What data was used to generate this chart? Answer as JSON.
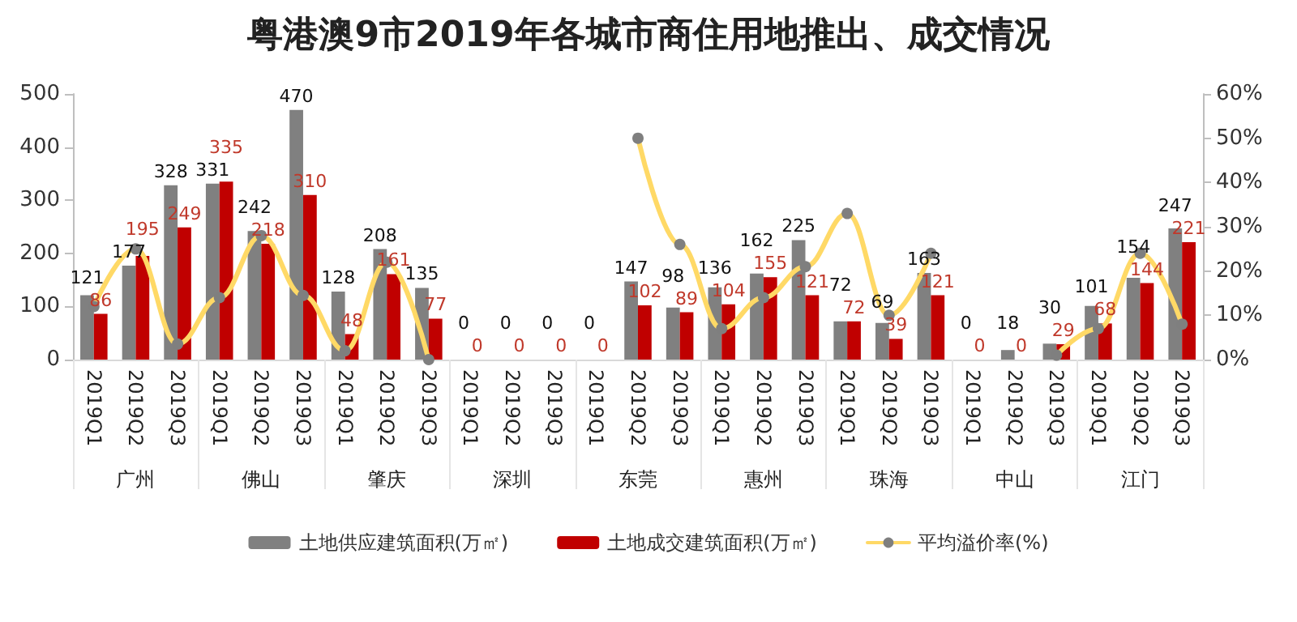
{
  "chart_data": {
    "type": "bar",
    "title": "粤港澳9市2019年各城市商住用地推出、成交情况",
    "categories": [
      "2019Q1",
      "2019Q2",
      "2019Q3",
      "2019Q1",
      "2019Q2",
      "2019Q3",
      "2019Q1",
      "2019Q2",
      "2019Q3",
      "2019Q1",
      "2019Q2",
      "2019Q3",
      "2019Q1",
      "2019Q2",
      "2019Q3",
      "2019Q1",
      "2019Q2",
      "2019Q3",
      "2019Q1",
      "2019Q2",
      "2019Q3",
      "2019Q1",
      "2019Q2",
      "2019Q3",
      "2019Q1",
      "2019Q2",
      "2019Q3"
    ],
    "annotations": [
      "广州",
      "佛山",
      "肇庆",
      "深圳",
      "东莞",
      "惠州",
      "珠海",
      "中山",
      "江门"
    ],
    "series": [
      {
        "name": "土地供应建筑面积(万㎡)",
        "color": "#808080",
        "values": [
          121,
          177,
          328,
          331,
          242,
          470,
          128,
          208,
          135,
          0,
          0,
          0,
          0,
          147,
          98,
          136,
          162,
          225,
          72,
          69,
          163,
          0,
          18,
          30,
          101,
          154,
          247
        ],
        "value_labels": [
          "121",
          "177",
          "328",
          "331",
          "242",
          "470",
          "128",
          "208",
          "135",
          "0",
          "0",
          "0",
          "0",
          "147",
          "98",
          "136",
          "162",
          "225",
          "72",
          "69",
          "163",
          "0",
          "18",
          "30",
          "101",
          "154",
          "247"
        ]
      },
      {
        "name": "土地成交建筑面积(万㎡)",
        "color": "#c00000",
        "values": [
          86,
          195,
          249,
          335,
          218,
          310,
          48,
          161,
          77,
          0,
          0,
          0,
          0,
          102,
          89,
          104,
          155,
          121,
          72,
          39,
          121,
          0,
          0,
          29,
          68,
          144,
          221
        ],
        "value_labels": [
          "86",
          "195",
          "249",
          "335",
          "218",
          "310",
          "48",
          "161",
          "77",
          "0",
          "0",
          "0",
          "0",
          "102",
          "89",
          "104",
          "155",
          "121",
          "72",
          "39",
          "121",
          "0",
          "0",
          "29",
          "68",
          "144",
          "221"
        ]
      },
      {
        "name": "平均溢价率(%)",
        "type": "line",
        "axis": "y2",
        "color": "#ffd966",
        "marker": "circle",
        "values": [
          12,
          25,
          3.5,
          14,
          28,
          14.5,
          2,
          22,
          0,
          null,
          null,
          null,
          null,
          50,
          26,
          7,
          14,
          21,
          33,
          10,
          24,
          null,
          null,
          1,
          7,
          24,
          8
        ]
      }
    ],
    "ylim": [
      0,
      500
    ],
    "yticks": [
      0,
      100,
      200,
      300,
      400,
      500
    ],
    "y2lim": [
      0,
      60
    ],
    "y2ticks": [
      {
        "value": 0,
        "label": "0%"
      },
      {
        "value": 10,
        "label": "10%"
      },
      {
        "value": 20,
        "label": "20%"
      },
      {
        "value": 30,
        "label": "30%"
      },
      {
        "value": 40,
        "label": "40%"
      },
      {
        "value": 50,
        "label": "50%"
      },
      {
        "value": 60,
        "label": "60%"
      }
    ],
    "legend": "bottom",
    "grid": false
  }
}
